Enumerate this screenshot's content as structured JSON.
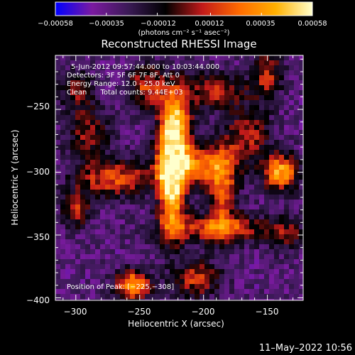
{
  "chart_data": {
    "type": "heatmap",
    "title": "Reconstructed RHESSI Image",
    "xlabel": "Heliocentric X (arcsec)",
    "ylabel": "Heliocentric Y (arcsec)",
    "xlim": [
      -316,
      -122
    ],
    "ylim": [
      -402,
      -207
    ],
    "x_ticks": [
      -300,
      -250,
      -200,
      -150
    ],
    "x_tick_labels": [
      "−300",
      "−250",
      "−200",
      "−150"
    ],
    "y_ticks": [
      -250,
      -300,
      -350,
      -400
    ],
    "y_tick_labels": [
      "−250",
      "−300",
      "−350",
      "−400"
    ],
    "colorbar": {
      "range": [
        -0.00058,
        0.00058
      ],
      "ticks": [
        -0.00058,
        -0.00035,
        -0.00012,
        0.00012,
        0.00035,
        0.00058
      ],
      "tick_labels": [
        "−0.00058",
        "−0.00035",
        "−0.00012",
        "0.00012",
        "0.00035",
        "0.00058"
      ],
      "unit_label": "(photons cm⁻² s⁻¹ asec⁻²)",
      "colors": [
        "#0000ff",
        "#7b1aa0",
        "#3a1a55",
        "#000000",
        "#c21a1a",
        "#ff6a00",
        "#ffb000",
        "#ffffcc"
      ]
    },
    "annotations": [
      "5-Jun-2012 09:57:44.000 to 10:03:44.000",
      "Detectors: 3F 5F 6F 7F 8F, Att 0",
      "Energy Range: 12.0 - 25.0 keV",
      "Clean      Total counts: 9.44E+03"
    ],
    "peak_label": "Position of Peak: [−225,−308]",
    "peak": {
      "x": -225,
      "y": -308
    },
    "sources": [
      {
        "x": -225,
        "y": -308,
        "sx": 7,
        "sy": 30,
        "amp": 1.0
      },
      {
        "x": -222,
        "y": -262,
        "sx": 9,
        "sy": 22,
        "amp": 0.75
      },
      {
        "x": -205,
        "y": -295,
        "sx": 20,
        "sy": 12,
        "amp": 0.6
      },
      {
        "x": -270,
        "y": -305,
        "sx": 22,
        "sy": 10,
        "amp": 0.55
      },
      {
        "x": -190,
        "y": -345,
        "sx": 30,
        "sy": 8,
        "amp": 0.55
      },
      {
        "x": -140,
        "y": -300,
        "sx": 10,
        "sy": 10,
        "amp": 0.8
      },
      {
        "x": -165,
        "y": -270,
        "sx": 12,
        "sy": 14,
        "amp": 0.45
      },
      {
        "x": -255,
        "y": -390,
        "sx": 10,
        "sy": 8,
        "amp": 0.8
      },
      {
        "x": -205,
        "y": -385,
        "sx": 12,
        "sy": 10,
        "amp": 0.5
      },
      {
        "x": -245,
        "y": -232,
        "sx": 10,
        "sy": 12,
        "amp": 0.5
      },
      {
        "x": -190,
        "y": -235,
        "sx": 18,
        "sy": 10,
        "amp": 0.45
      },
      {
        "x": -150,
        "y": -222,
        "sx": 8,
        "sy": 14,
        "amp": 0.45
      },
      {
        "x": -290,
        "y": -270,
        "sx": 12,
        "sy": 14,
        "amp": 0.4
      },
      {
        "x": -300,
        "y": -235,
        "sx": 10,
        "sy": 12,
        "amp": 0.35
      },
      {
        "x": -185,
        "y": -315,
        "sx": 8,
        "sy": 25,
        "amp": 0.5
      },
      {
        "x": -300,
        "y": -330,
        "sx": 8,
        "sy": 10,
        "amp": 0.45
      },
      {
        "x": -135,
        "y": -350,
        "sx": 10,
        "sy": 10,
        "amp": 0.3
      }
    ]
  },
  "timestamp": "11–May–2022 10:56"
}
